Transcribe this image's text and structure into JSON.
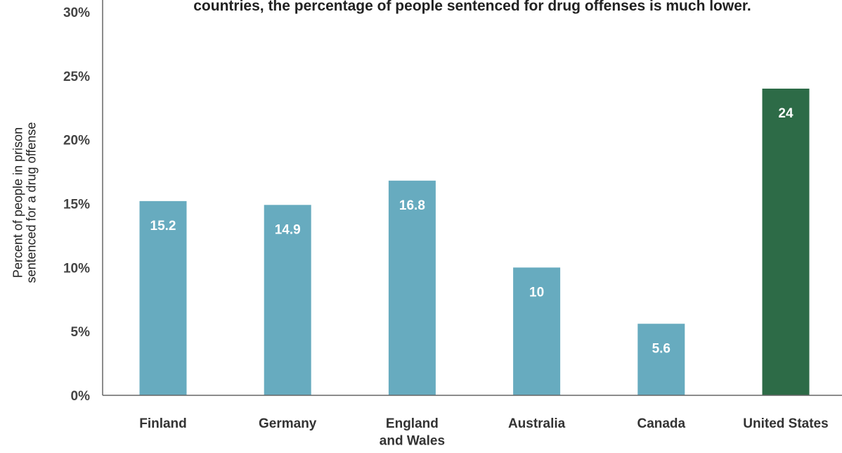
{
  "chart_data": {
    "type": "bar",
    "title": "countries, the percentage of people sentenced for drug offenses is much lower.",
    "ylabel": [
      "Percent of people in prison",
      "sentenced for a drug offense"
    ],
    "xlabel": "",
    "categories": [
      [
        "Finland"
      ],
      [
        "Germany"
      ],
      [
        "England",
        "and Wales"
      ],
      [
        "Australia"
      ],
      [
        "Canada"
      ],
      [
        "United States"
      ]
    ],
    "values": [
      15.2,
      14.9,
      16.8,
      10,
      5.6,
      24
    ],
    "value_labels": [
      "15.2",
      "14.9",
      "16.8",
      "10",
      "5.6",
      "24"
    ],
    "y_ticks": [
      "0%",
      "5%",
      "10%",
      "15%",
      "20%",
      "25%",
      "30%"
    ],
    "ylim": [
      0,
      30
    ],
    "grid": false,
    "legend": "none",
    "colors": {
      "default_bar": "#67abbf",
      "highlight_bar": "#2d6b47",
      "highlight_index": 5,
      "axis": "#666666"
    }
  }
}
